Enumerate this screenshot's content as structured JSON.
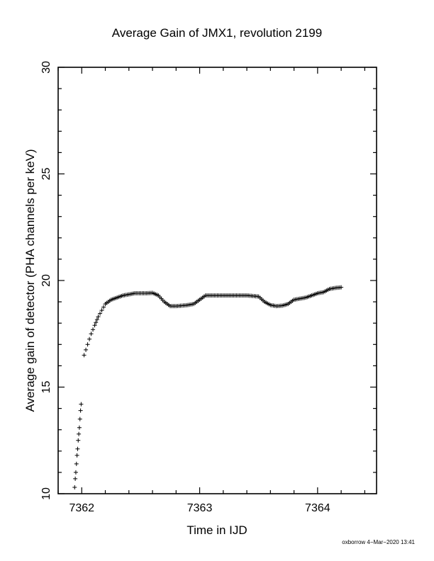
{
  "chart_data": {
    "type": "scatter",
    "title": "Average Gain of JMX1, revolution 2199",
    "xlabel": "Time in IJD",
    "ylabel": "Average gain of detector (PHA channels per keV)",
    "xlim": [
      7361.8,
      7364.5
    ],
    "ylim": [
      10,
      30
    ],
    "xticks": [
      7362,
      7363,
      7364
    ],
    "xtick_labels": [
      "7362",
      "7363",
      "7364"
    ],
    "yticks": [
      10,
      15,
      20,
      25,
      30
    ],
    "ytick_labels": [
      "10",
      "15",
      "20",
      "25",
      "30"
    ],
    "grid": false,
    "marker": "+",
    "color": "#000000",
    "x": [
      7361.94,
      7361.945,
      7361.95,
      7361.955,
      7361.96,
      7361.965,
      7361.97,
      7361.975,
      7361.98,
      7361.985,
      7361.99,
      7361.995,
      7362.02,
      7362.05,
      7362.08,
      7362.11,
      7362.14,
      7362.17,
      7362.2,
      7362.25,
      7362.3,
      7362.35,
      7362.4,
      7362.45,
      7362.5,
      7362.55,
      7362.6,
      7362.65,
      7362.7,
      7362.75,
      7362.8,
      7362.85,
      7362.9,
      7362.95,
      7363.0,
      7363.05,
      7363.1,
      7363.2,
      7363.3,
      7363.4,
      7363.5,
      7363.55,
      7363.6,
      7363.65,
      7363.7,
      7363.75,
      7363.8,
      7363.85,
      7363.9,
      7363.95,
      7364.0,
      7364.05,
      7364.1,
      7364.15,
      7364.2
    ],
    "y": [
      10.3,
      10.7,
      11.0,
      11.4,
      11.8,
      12.1,
      12.5,
      12.8,
      13.1,
      13.5,
      13.9,
      14.2,
      16.5,
      17.0,
      17.5,
      17.9,
      18.3,
      18.6,
      18.9,
      19.1,
      19.2,
      19.3,
      19.35,
      19.4,
      19.4,
      19.4,
      19.42,
      19.3,
      19.0,
      18.8,
      18.8,
      18.82,
      18.85,
      18.9,
      19.1,
      19.3,
      19.3,
      19.3,
      19.3,
      19.3,
      19.25,
      19.0,
      18.85,
      18.8,
      18.82,
      18.9,
      19.1,
      19.15,
      19.2,
      19.3,
      19.4,
      19.45,
      19.6,
      19.65,
      19.68
    ],
    "footer": "oxborrow  4−Mar−2020 13:41"
  }
}
